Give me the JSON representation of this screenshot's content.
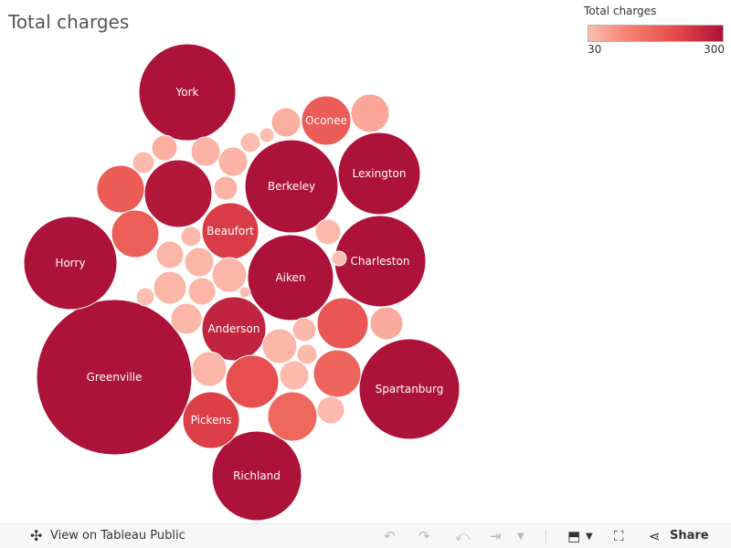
{
  "title": "Total charges",
  "legend": {
    "title": "Total charges",
    "min": "30",
    "max": "300",
    "color_low": "#fdbdb0",
    "color_high": "#ad1238"
  },
  "chart_data": {
    "type": "bubble",
    "title": "Total charges",
    "measure": "Total charges",
    "color_range": [
      30,
      300
    ],
    "bubbles": [
      {
        "label": "Greenville",
        "value": 300
      },
      {
        "label": "Horry",
        "value": 300
      },
      {
        "label": "York",
        "value": 300
      },
      {
        "label": "Berkeley",
        "value": 300
      },
      {
        "label": "Lexington",
        "value": 300
      },
      {
        "label": "Charleston",
        "value": 300
      },
      {
        "label": "Aiken",
        "value": 300
      },
      {
        "label": "Spartanburg",
        "value": 300
      },
      {
        "label": "Richland",
        "value": 300
      },
      {
        "label": "",
        "value": 290
      },
      {
        "label": "Anderson",
        "value": 270
      },
      {
        "label": "Beaufort",
        "value": 230
      },
      {
        "label": "Pickens",
        "value": 225
      },
      {
        "label": "Oconee",
        "value": 175
      },
      {
        "label": "",
        "value": 200
      },
      {
        "label": "",
        "value": 185
      },
      {
        "label": "",
        "value": 175
      },
      {
        "label": "",
        "value": 170
      },
      {
        "label": "",
        "value": 160
      },
      {
        "label": "",
        "value": 155
      },
      {
        "label": "",
        "value": 60
      },
      {
        "label": "",
        "value": 55
      },
      {
        "label": "",
        "value": 50
      },
      {
        "label": "",
        "value": 50
      },
      {
        "label": "",
        "value": 45
      },
      {
        "label": "",
        "value": 45
      },
      {
        "label": "",
        "value": 45
      },
      {
        "label": "",
        "value": 40
      },
      {
        "label": "",
        "value": 40
      },
      {
        "label": "",
        "value": 40
      },
      {
        "label": "",
        "value": 40
      },
      {
        "label": "",
        "value": 40
      },
      {
        "label": "",
        "value": 40
      },
      {
        "label": "",
        "value": 40
      },
      {
        "label": "",
        "value": 40
      },
      {
        "label": "",
        "value": 35
      },
      {
        "label": "",
        "value": 35
      },
      {
        "label": "",
        "value": 35
      },
      {
        "label": "",
        "value": 35
      },
      {
        "label": "",
        "value": 35
      },
      {
        "label": "",
        "value": 35
      },
      {
        "label": "",
        "value": 35
      },
      {
        "label": "",
        "value": 30
      },
      {
        "label": "",
        "value": 30
      },
      {
        "label": "",
        "value": 30
      },
      {
        "label": "",
        "value": 30
      },
      {
        "label": "",
        "value": 30
      }
    ]
  },
  "footer": {
    "view_label": "View on Tableau Public",
    "share_label": "Share"
  }
}
